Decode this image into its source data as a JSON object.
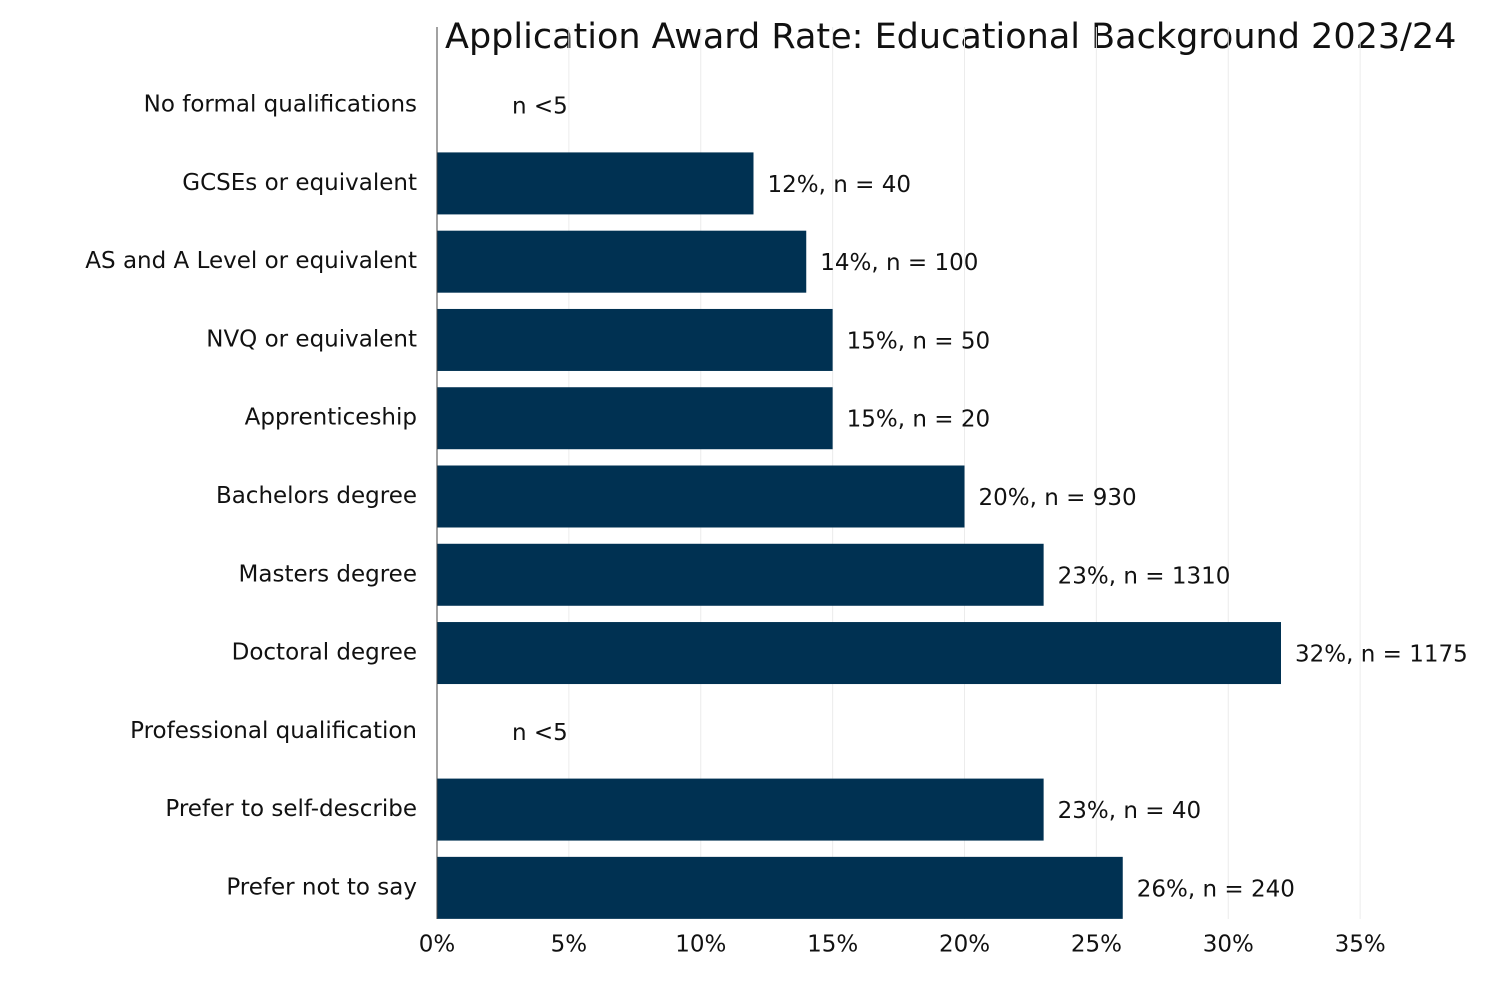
{
  "chart_data": {
    "type": "barh",
    "title": "Application Award Rate: Educational Background 2023/24",
    "categories": [
      "No formal qualifications",
      "GCSEs or equivalent",
      "AS and A Level or equivalent",
      "NVQ or equivalent",
      "Apprenticeship",
      "Bachelors degree",
      "Masters degree",
      "Doctoral degree",
      "Professional qualification",
      "Prefer to self-describe",
      "Prefer not to say"
    ],
    "values": [
      null,
      12,
      14,
      15,
      15,
      20,
      23,
      32,
      null,
      23,
      26
    ],
    "value_labels": [
      "n <5",
      "12%, n = 40",
      "14%, n = 100",
      "15%, n = 50",
      "15%, n = 20",
      "20%, n = 930",
      "23%, n = 1310",
      "32%, n = 1175",
      "n <5",
      "23%, n = 40",
      "26%, n = 240"
    ],
    "color": "#003152",
    "xlim": [
      0,
      40
    ],
    "xticks": [
      {
        "value": 0,
        "label": "0%"
      },
      {
        "value": 5,
        "label": "5%"
      },
      {
        "value": 10,
        "label": "10%"
      },
      {
        "value": 15,
        "label": "15%"
      },
      {
        "value": 20,
        "label": "20%"
      },
      {
        "value": 25,
        "label": "25%"
      },
      {
        "value": 30,
        "label": "30%"
      },
      {
        "value": 35,
        "label": "35%"
      }
    ],
    "grid": true
  }
}
